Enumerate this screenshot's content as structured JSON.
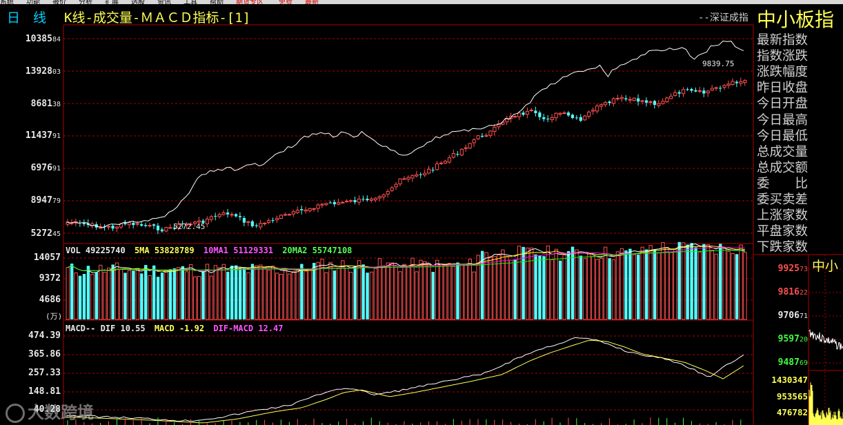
{
  "menubar": {
    "items": [
      "系统",
      "功能",
      "报价",
      "分析",
      "扩展",
      "选股",
      "资讯",
      "工具",
      "帮助"
    ],
    "highlight": [
      "期货专区",
      "免费",
      "最新"
    ]
  },
  "header": {
    "period": "日　线",
    "title": "K线-成交量-ＭＡＣＤ指标-[1]",
    "link": "--深证成指",
    "index_name": "中小板指",
    "index_name_small": "中小"
  },
  "right_panel": {
    "labels": [
      "最新指数",
      "指数涨跌",
      "涨跌幅度",
      "昨日收盘",
      "今日开盘",
      "今日最高",
      "今日最低",
      "总成交量",
      "总成交额",
      "委　　比",
      "委买卖差",
      "上涨家数",
      "平盘家数",
      "下跌家数"
    ]
  },
  "price_panel": {
    "y_ticks": [
      {
        "main": "10385",
        "small": "84"
      },
      {
        "main": "13928",
        "small": "03"
      },
      {
        "main": "8681",
        "small": "38"
      },
      {
        "main": "11437",
        "small": "91"
      },
      {
        "main": "6976",
        "small": "91"
      },
      {
        "main": "8947",
        "small": "79"
      },
      {
        "main": "5272",
        "small": "45"
      }
    ],
    "low_label": "5272.45",
    "high_label": "9839.75"
  },
  "volume_panel": {
    "legend": {
      "vol": "VOL 49225740",
      "ma5": "5MA 53828789",
      "ma10": "10MA1 51129331",
      "ma20": "20MA2 55747108"
    },
    "y_ticks": [
      "14057",
      "9372",
      "4686"
    ],
    "unit": "(万)"
  },
  "macd_panel": {
    "legend": {
      "name": "MACD-- DIF 10.55",
      "macd": "MACD -1.92",
      "difmacd": "DIF-MACD 12.47"
    },
    "y_ticks": [
      "474.39",
      "365.86",
      "257.33",
      "148.81",
      "40.28"
    ]
  },
  "side_chart": {
    "price_ticks": [
      {
        "main": "9925",
        "small": "73",
        "color": "#ff5050"
      },
      {
        "main": "9816",
        "small": "22",
        "color": "#ff5050"
      },
      {
        "main": "9706",
        "small": "71",
        "color": "#e8e8e8"
      },
      {
        "main": "9597",
        "small": "20",
        "color": "#40ff40"
      },
      {
        "main": "9487",
        "small": "69",
        "color": "#40ff40"
      }
    ],
    "volume_ticks": [
      "1430347",
      "953565",
      "476782"
    ]
  },
  "watermark": "大数跨境",
  "colors": {
    "up": "#ff5050",
    "down": "#54ffff",
    "ma5": "#ffffff",
    "ma10": "#ffff00",
    "ma20": "#ff00ff",
    "ma60": "#00ff00",
    "grid": "#b00000"
  },
  "chart_data": {
    "type": "candlestick",
    "title": "K线-成交量-ＭＡＣＤ指标-[1]",
    "price_axis_labels": [
      "10385.84",
      "13928.03",
      "8681.38",
      "11437.91",
      "6976.91",
      "8947.79",
      "5272.45"
    ],
    "annotations": [
      "5272.45",
      "9839.75"
    ],
    "volume_axis_labels": [
      14057,
      9372,
      4686
    ],
    "macd_axis_labels": [
      474.39,
      365.86,
      257.33,
      148.81,
      40.28
    ],
    "volume_legend": {
      "VOL": 49225740,
      "5MA": 53828789,
      "10MA1": 51129331,
      "20MA2": 55747108
    },
    "macd_legend": {
      "DIF": 10.55,
      "MACD": -1.92,
      "DIF-MACD": 12.47
    }
  }
}
